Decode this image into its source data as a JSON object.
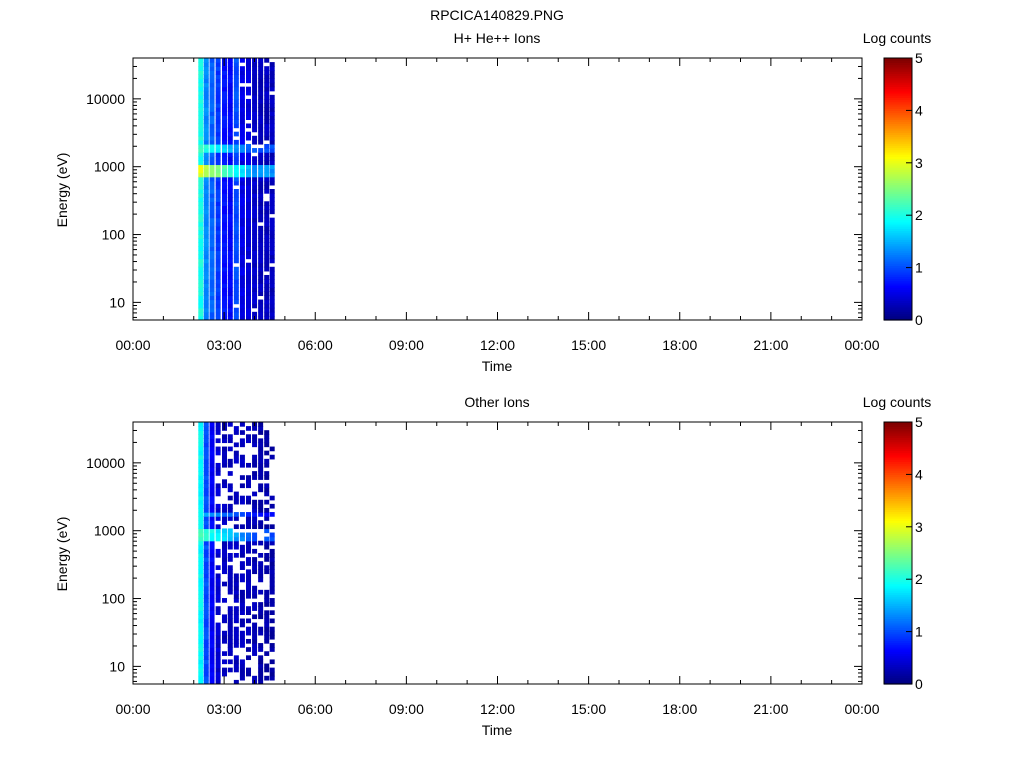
{
  "figure": {
    "title": "RPCICA140829.PNG"
  },
  "chart_data": [
    {
      "type": "heatmap",
      "title": "H+ He++ Ions",
      "xlabel": "Time",
      "ylabel": "Energy (eV)",
      "x_range_hours": [
        0,
        24
      ],
      "x_ticks": [
        "00:00",
        "03:00",
        "06:00",
        "09:00",
        "12:00",
        "15:00",
        "18:00",
        "21:00",
        "00:00"
      ],
      "y_scale": "log",
      "y_range": [
        5.5,
        40000
      ],
      "y_ticks": [
        10,
        100,
        1000,
        10000
      ],
      "y_tick_labels": [
        "10",
        "100",
        "1000",
        "10000"
      ],
      "colorbar": {
        "label": "Log counts",
        "range": [
          0,
          5
        ],
        "ticks": [
          "0",
          "1",
          "2",
          "3",
          "4",
          "5"
        ],
        "colormap": "jet"
      },
      "data_coverage_hours": [
        2.15,
        4.55
      ],
      "stripes": [
        {
          "t": 2.15,
          "level": 2.0
        },
        {
          "t": 2.33,
          "level": 1.3
        },
        {
          "t": 2.52,
          "level": 1.1
        },
        {
          "t": 2.72,
          "level": 0.9
        },
        {
          "t": 2.93,
          "level": 0.7
        },
        {
          "t": 3.12,
          "level": 0.6
        },
        {
          "t": 3.32,
          "level": 1.0
        },
        {
          "t": 3.52,
          "level": 0.5
        },
        {
          "t": 3.72,
          "level": 0.45
        },
        {
          "t": 3.92,
          "level": 0.35
        },
        {
          "t": 4.12,
          "level": 0.3
        },
        {
          "t": 4.32,
          "level": 0.3
        },
        {
          "t": 4.5,
          "level": 0.3
        }
      ],
      "bands": [
        {
          "energy_low": 750,
          "energy_high": 1150,
          "peak_level": 3.0
        },
        {
          "energy_low": 1600,
          "energy_high": 2100,
          "peak_level": 2.2
        }
      ],
      "sparse_high_energy": false
    },
    {
      "type": "heatmap",
      "title": "Other Ions",
      "xlabel": "Time",
      "ylabel": "Energy (eV)",
      "x_range_hours": [
        0,
        24
      ],
      "x_ticks": [
        "00:00",
        "03:00",
        "06:00",
        "09:00",
        "12:00",
        "15:00",
        "18:00",
        "21:00",
        "00:00"
      ],
      "y_scale": "log",
      "y_range": [
        5.5,
        40000
      ],
      "y_ticks": [
        10,
        100,
        1000,
        10000
      ],
      "y_tick_labels": [
        "10",
        "100",
        "1000",
        "10000"
      ],
      "colorbar": {
        "label": "Log counts",
        "range": [
          0,
          5
        ],
        "ticks": [
          "0",
          "1",
          "2",
          "3",
          "4",
          "5"
        ],
        "colormap": "jet"
      },
      "data_coverage_hours": [
        2.15,
        4.55
      ],
      "stripes": [
        {
          "t": 2.15,
          "level": 1.9
        },
        {
          "t": 2.33,
          "level": 1.0
        },
        {
          "t": 2.52,
          "level": 0.6
        },
        {
          "t": 2.72,
          "level": 0.4
        },
        {
          "t": 2.93,
          "level": 0.3
        },
        {
          "t": 3.12,
          "level": 0.3
        },
        {
          "t": 3.32,
          "level": 0.3
        },
        {
          "t": 3.52,
          "level": 0.3
        },
        {
          "t": 3.72,
          "level": 0.25
        },
        {
          "t": 3.92,
          "level": 0.25
        },
        {
          "t": 4.12,
          "level": 0.2
        },
        {
          "t": 4.32,
          "level": 0.2
        },
        {
          "t": 4.5,
          "level": 0.2
        }
      ],
      "bands": [
        {
          "energy_low": 760,
          "energy_high": 1100,
          "peak_level": 2.2
        },
        {
          "energy_low": 1650,
          "energy_high": 2000,
          "peak_level": 1.6
        }
      ],
      "sparse_high_energy": true
    }
  ]
}
